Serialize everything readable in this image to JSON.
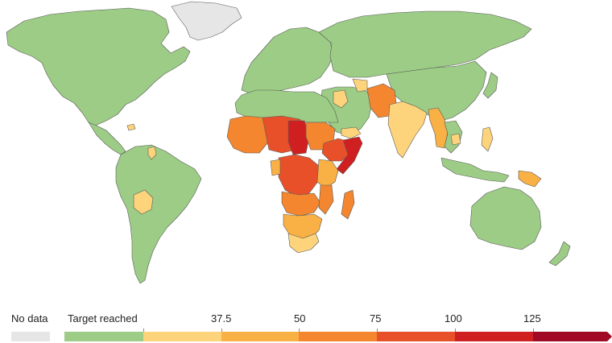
{
  "map": {
    "colors": {
      "no_data": "#e6e6e6",
      "target": "#9ccc85",
      "b1": "#fdd47b",
      "b2": "#f9b044",
      "b3": "#f3862e",
      "b4": "#e8502a",
      "b5": "#cf1f20",
      "b6": "#a10a24",
      "border": "#5b5b5b",
      "water": "#ffffff"
    }
  },
  "legend": {
    "no_data_label": "No data",
    "target_label": "Target reached",
    "ticks": [
      "37.5",
      "50",
      "75",
      "100",
      "125"
    ]
  }
}
